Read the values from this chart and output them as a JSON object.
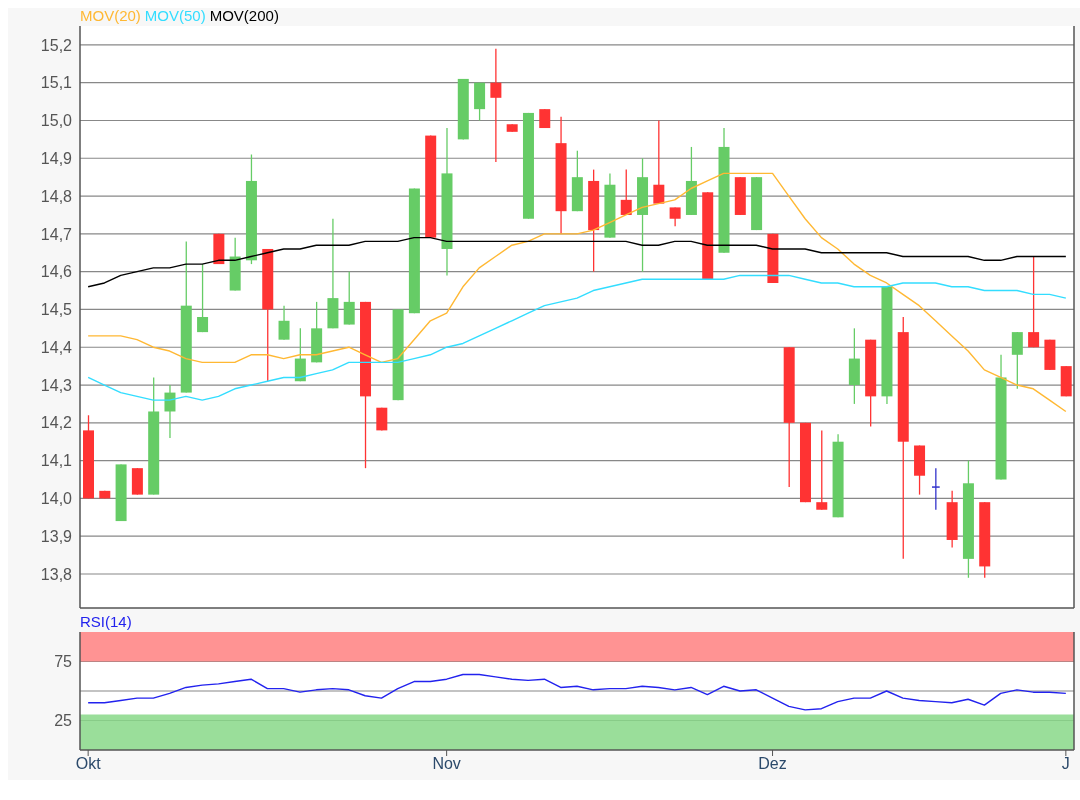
{
  "chart_data": [
    {
      "type": "candlestick",
      "categories": [
        null,
        null,
        null,
        null,
        null,
        null,
        null,
        null,
        null,
        null,
        null,
        null,
        null,
        null,
        null,
        null,
        null,
        null,
        null,
        null,
        null,
        null,
        null,
        null,
        null,
        null,
        null,
        null,
        null,
        null,
        null,
        null,
        null,
        null,
        null,
        null,
        null,
        null,
        null,
        null,
        null,
        null,
        null,
        null,
        null,
        null,
        null,
        null,
        null,
        null,
        null,
        null,
        null,
        null,
        null,
        null,
        null,
        null,
        null,
        null,
        null
      ],
      "ohlc": [
        [
          14.18,
          14.22,
          14.0,
          14.0
        ],
        [
          14.02,
          14.02,
          14.0,
          14.0
        ],
        [
          13.94,
          14.09,
          13.94,
          14.09
        ],
        [
          14.08,
          14.08,
          14.01,
          14.01
        ],
        [
          14.01,
          14.32,
          14.01,
          14.23
        ],
        [
          14.23,
          14.3,
          14.16,
          14.28
        ],
        [
          14.28,
          14.68,
          14.28,
          14.51
        ],
        [
          14.44,
          14.62,
          14.44,
          14.48
        ],
        [
          14.7,
          14.7,
          14.62,
          14.62
        ],
        [
          14.55,
          14.69,
          14.55,
          14.64
        ],
        [
          14.63,
          14.91,
          14.62,
          14.84
        ],
        [
          14.66,
          14.66,
          14.31,
          14.5
        ],
        [
          14.42,
          14.51,
          14.42,
          14.47
        ],
        [
          14.31,
          14.45,
          14.31,
          14.37
        ],
        [
          14.36,
          14.52,
          14.36,
          14.45
        ],
        [
          14.45,
          14.74,
          14.45,
          14.53
        ],
        [
          14.46,
          14.6,
          14.46,
          14.52
        ],
        [
          14.52,
          14.52,
          14.08,
          14.27
        ],
        [
          14.24,
          14.24,
          14.18,
          14.18
        ],
        [
          14.26,
          14.5,
          14.26,
          14.5
        ],
        [
          14.49,
          14.82,
          14.49,
          14.82
        ],
        [
          14.96,
          14.96,
          14.69,
          14.69
        ],
        [
          14.66,
          14.98,
          14.59,
          14.86
        ],
        [
          14.95,
          15.11,
          14.95,
          15.11
        ],
        [
          15.03,
          15.1,
          15.0,
          15.1
        ],
        [
          15.1,
          15.19,
          14.89,
          15.06
        ],
        [
          14.99,
          14.99,
          14.97,
          14.97
        ],
        [
          14.74,
          15.02,
          14.74,
          15.02
        ],
        [
          15.03,
          15.03,
          14.98,
          14.98
        ],
        [
          14.94,
          15.01,
          14.7,
          14.76
        ],
        [
          14.76,
          14.92,
          14.76,
          14.85
        ],
        [
          14.84,
          14.87,
          14.6,
          14.71
        ],
        [
          14.69,
          14.86,
          14.69,
          14.83
        ],
        [
          14.79,
          14.87,
          14.75,
          14.75
        ],
        [
          14.75,
          14.9,
          14.6,
          14.85
        ],
        [
          14.83,
          15.0,
          14.78,
          14.78
        ],
        [
          14.77,
          14.77,
          14.72,
          14.74
        ],
        [
          14.75,
          14.93,
          14.75,
          14.84
        ],
        [
          14.81,
          14.81,
          14.58,
          14.58
        ],
        [
          14.65,
          14.98,
          14.65,
          14.93
        ],
        [
          14.85,
          14.85,
          14.75,
          14.75
        ],
        [
          14.71,
          14.85,
          14.71,
          14.85
        ],
        [
          14.7,
          14.7,
          14.57,
          14.57
        ],
        [
          14.4,
          14.4,
          14.03,
          14.2
        ],
        [
          14.2,
          14.2,
          13.99,
          13.99
        ],
        [
          13.99,
          14.18,
          13.97,
          13.97
        ],
        [
          13.95,
          14.17,
          13.95,
          14.15
        ],
        [
          14.3,
          14.45,
          14.25,
          14.37
        ],
        [
          14.42,
          14.42,
          14.19,
          14.27
        ],
        [
          14.27,
          14.56,
          14.25,
          14.56
        ],
        [
          14.44,
          14.48,
          13.84,
          14.15
        ],
        [
          14.14,
          14.14,
          14.01,
          14.06
        ],
        [
          14.03,
          14.08,
          13.97,
          14.03
        ],
        [
          13.99,
          14.02,
          13.87,
          13.89
        ],
        [
          13.84,
          14.1,
          13.79,
          14.04
        ],
        [
          13.99,
          13.99,
          13.79,
          13.82
        ],
        [
          14.05,
          14.38,
          14.05,
          14.32
        ],
        [
          14.38,
          14.44,
          14.29,
          14.44
        ],
        [
          14.44,
          14.64,
          14.4,
          14.4
        ],
        [
          14.42,
          14.42,
          14.34,
          14.34
        ],
        [
          14.35,
          14.35,
          14.27,
          14.27
        ]
      ],
      "colors": [
        "#ff3333",
        "#ff3333",
        "#66cc66",
        "#ff3333",
        "#66cc66",
        "#66cc66",
        "#66cc66",
        "#66cc66",
        "#ff3333",
        "#66cc66",
        "#66cc66",
        "#ff3333",
        "#66cc66",
        "#66cc66",
        "#66cc66",
        "#66cc66",
        "#66cc66",
        "#ff3333",
        "#ff3333",
        "#66cc66",
        "#66cc66",
        "#ff3333",
        "#66cc66",
        "#66cc66",
        "#66cc66",
        "#ff3333",
        "#ff3333",
        "#66cc66",
        "#ff3333",
        "#ff3333",
        "#66cc66",
        "#ff3333",
        "#66cc66",
        "#ff3333",
        "#66cc66",
        "#ff3333",
        "#ff3333",
        "#66cc66",
        "#ff3333",
        "#66cc66",
        "#ff3333",
        "#66cc66",
        "#ff3333",
        "#ff3333",
        "#ff3333",
        "#ff3333",
        "#66cc66",
        "#66cc66",
        "#ff3333",
        "#66cc66",
        "#ff3333",
        "#ff3333",
        "#3333cc",
        "#ff3333",
        "#66cc66",
        "#ff3333",
        "#66cc66",
        "#66cc66",
        "#ff3333",
        "#ff3333",
        "#ff3333"
      ],
      "series": [
        {
          "type": "line",
          "name": "MOV(20)",
          "color": "#ffb833",
          "values": [
            14.43,
            14.43,
            14.43,
            14.42,
            14.4,
            14.39,
            14.37,
            14.36,
            14.36,
            14.36,
            14.38,
            14.38,
            14.37,
            14.38,
            14.38,
            14.39,
            14.4,
            14.38,
            14.36,
            14.37,
            14.42,
            14.47,
            14.49,
            14.56,
            14.61,
            14.64,
            14.67,
            14.68,
            14.7,
            14.7,
            14.7,
            14.71,
            14.73,
            14.75,
            14.77,
            14.78,
            14.79,
            14.82,
            14.84,
            14.86,
            14.86,
            14.86,
            14.86,
            14.8,
            14.74,
            14.69,
            14.66,
            14.62,
            14.59,
            14.57,
            14.54,
            14.51,
            14.47,
            14.43,
            14.39,
            14.34,
            14.32,
            14.3,
            14.29,
            14.26,
            14.23
          ]
        },
        {
          "type": "line",
          "name": "MOV(50)",
          "color": "#33ddff",
          "values": [
            14.32,
            14.3,
            14.28,
            14.27,
            14.26,
            14.26,
            14.27,
            14.26,
            14.27,
            14.29,
            14.3,
            14.31,
            14.32,
            14.32,
            14.33,
            14.34,
            14.36,
            14.36,
            14.36,
            14.36,
            14.37,
            14.38,
            14.4,
            14.41,
            14.43,
            14.45,
            14.47,
            14.49,
            14.51,
            14.52,
            14.53,
            14.55,
            14.56,
            14.57,
            14.58,
            14.58,
            14.58,
            14.58,
            14.58,
            14.58,
            14.59,
            14.59,
            14.59,
            14.59,
            14.58,
            14.57,
            14.57,
            14.56,
            14.56,
            14.56,
            14.57,
            14.57,
            14.57,
            14.56,
            14.56,
            14.55,
            14.55,
            14.55,
            14.54,
            14.54,
            14.53
          ]
        },
        {
          "type": "line",
          "name": "MOV(200)",
          "color": "#000000",
          "values": [
            14.56,
            14.57,
            14.59,
            14.6,
            14.61,
            14.61,
            14.62,
            14.62,
            14.63,
            14.63,
            14.64,
            14.65,
            14.66,
            14.66,
            14.67,
            14.67,
            14.67,
            14.68,
            14.68,
            14.68,
            14.69,
            14.69,
            14.68,
            14.68,
            14.68,
            14.68,
            14.68,
            14.68,
            14.68,
            14.68,
            14.68,
            14.68,
            14.68,
            14.68,
            14.67,
            14.67,
            14.68,
            14.68,
            14.67,
            14.67,
            14.67,
            14.67,
            14.66,
            14.66,
            14.66,
            14.65,
            14.65,
            14.65,
            14.65,
            14.65,
            14.64,
            14.64,
            14.64,
            14.64,
            14.64,
            14.63,
            14.63,
            14.64,
            14.64,
            14.64,
            14.64
          ]
        }
      ],
      "ylim": [
        13.71,
        15.25
      ],
      "yticks": [
        {
          "value": 13.8,
          "label": "13,8"
        },
        {
          "value": 13.9,
          "label": "13,9"
        },
        {
          "value": 14.0,
          "label": "14,0"
        },
        {
          "value": 14.1,
          "label": "14,1"
        },
        {
          "value": 14.2,
          "label": "14,2"
        },
        {
          "value": 14.3,
          "label": "14,3"
        },
        {
          "value": 14.4,
          "label": "14,4"
        },
        {
          "value": 14.5,
          "label": "14,5"
        },
        {
          "value": 14.6,
          "label": "14,6"
        },
        {
          "value": 14.7,
          "label": "14,7"
        },
        {
          "value": 14.8,
          "label": "14,8"
        },
        {
          "value": 14.9,
          "label": "14,9"
        },
        {
          "value": 15.0,
          "label": "15,0"
        },
        {
          "value": 15.1,
          "label": "15,1"
        },
        {
          "value": 15.2,
          "label": "15,2"
        }
      ],
      "grid": "y",
      "legend": "top left",
      "tick_labels": "y"
    },
    {
      "type": "line",
      "categories": [
        "Okt",
        null,
        null,
        null,
        null,
        null,
        null,
        null,
        null,
        null,
        null,
        null,
        null,
        null,
        null,
        null,
        null,
        null,
        null,
        null,
        null,
        null,
        "Nov",
        null,
        null,
        null,
        null,
        null,
        null,
        null,
        null,
        null,
        null,
        null,
        null,
        null,
        null,
        null,
        null,
        null,
        null,
        null,
        "Dez",
        null,
        null,
        null,
        null,
        null,
        null,
        null,
        null,
        null,
        null,
        null,
        null,
        null,
        null,
        null,
        null,
        null,
        "J"
      ],
      "series": [
        {
          "name": "RSI(14)",
          "color": "#2222ee",
          "values": [
            40,
            40,
            42,
            44,
            44,
            48,
            53,
            55,
            56,
            58,
            60,
            52,
            52,
            49,
            51,
            52,
            51,
            46,
            44,
            52,
            58,
            58,
            60,
            64,
            64,
            62,
            60,
            59,
            60,
            53,
            54,
            51,
            52,
            52,
            54,
            53,
            51,
            53,
            47,
            54,
            50,
            51,
            44,
            37,
            34,
            35,
            41,
            44,
            44,
            50,
            44,
            42,
            41,
            40,
            43,
            38,
            48,
            51,
            49,
            49,
            48
          ]
        }
      ],
      "ylim": [
        0,
        100
      ],
      "yticks": [
        25,
        {
          "value": 50,
          "label": null
        },
        75
      ],
      "bands": [
        {
          "axis": "y",
          "from": 75,
          "to": 100,
          "color": "#ff8080"
        },
        {
          "axis": "y",
          "from": 0,
          "to": 30,
          "color": "#88d888"
        }
      ],
      "grid": "y",
      "legend": "top left"
    }
  ]
}
